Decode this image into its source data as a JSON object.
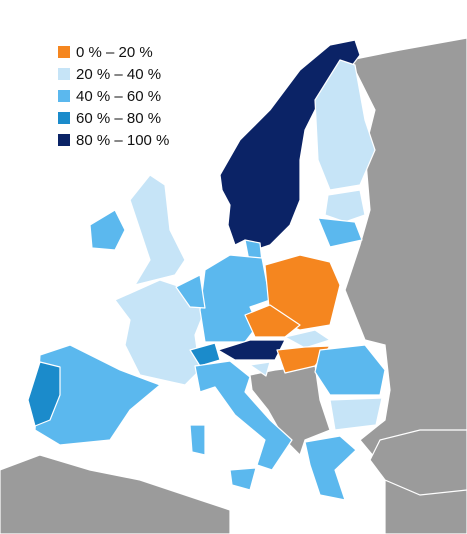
{
  "legend": {
    "items": [
      {
        "label": "0 % – 20 %",
        "color": "#f5861f"
      },
      {
        "label": "20 % – 40 %",
        "color": "#c6e4f7"
      },
      {
        "label": "40 % – 60 %",
        "color": "#5bb8ee"
      },
      {
        "label": "60 % – 80 %",
        "color": "#1b8bcb"
      },
      {
        "label": "80 % – 100 %",
        "color": "#0b2366"
      }
    ]
  }
}
